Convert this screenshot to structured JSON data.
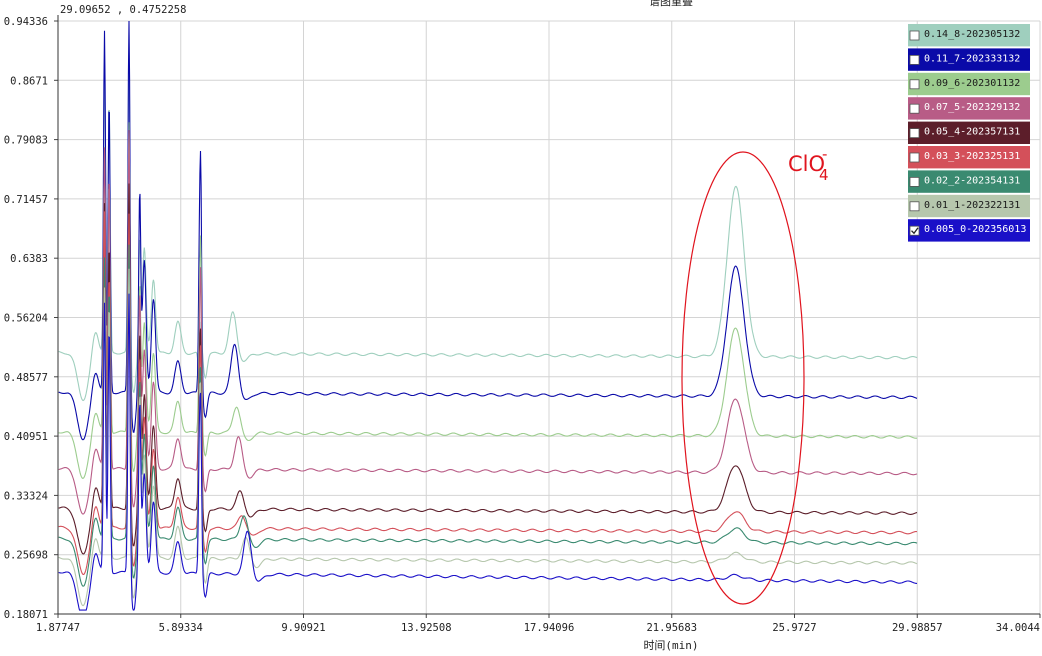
{
  "coord_readout": "29.09652 , 0.4752258",
  "chart_title": "谱图重叠",
  "chart_data": {
    "type": "line",
    "xlabel": "时间(min)",
    "ylabel": "",
    "xlim": [
      1.87747,
      34.0044
    ],
    "ylim": [
      0.18071,
      0.94336
    ],
    "x_ticks": [
      "1.87747",
      "5.89334",
      "9.90921",
      "13.92508",
      "17.94096",
      "21.95683",
      "25.9727",
      "29.98857",
      "34.0044"
    ],
    "y_ticks": [
      "0.94336",
      "0.8671",
      "0.79083",
      "0.71457",
      "0.6383",
      "0.56204",
      "0.48577",
      "0.40951",
      "0.33324",
      "0.25698",
      "0.18071"
    ],
    "grid": true,
    "legend_position": "top-right",
    "annotation": {
      "text": "ClO",
      "sub": "4",
      "sup": "-",
      "peak_x": 24.05
    },
    "series": [
      {
        "name": "0.14_8-202305132",
        "color": "#9fcfbe",
        "baseline": 0.517,
        "peak": 0.735,
        "early_peaks": [
          0.89,
          0.84,
          0.9,
          0.66,
          0.46,
          0.57
        ],
        "peak9": 0.57,
        "checked": false
      },
      {
        "name": "0.11_7-202333132",
        "color": "#0a0aa8",
        "baseline": 0.466,
        "peak": 0.632,
        "early_peaks": [
          0.93,
          0.84,
          0.95,
          0.72,
          0.62,
          0.73
        ],
        "peak9": 0.53,
        "checked": false
      },
      {
        "name": "0.09_6-202301132",
        "color": "#9ccc8e",
        "baseline": 0.415,
        "peak": 0.553,
        "early_peaks": [
          0.78,
          0.74,
          0.82,
          0.6,
          0.52,
          0.64
        ],
        "peak9": 0.45,
        "checked": false
      },
      {
        "name": "0.07_5-202329132",
        "color": "#b85c86",
        "baseline": 0.368,
        "peak": 0.463,
        "early_peaks": [
          0.78,
          0.75,
          0.81,
          0.59,
          0.47,
          0.6
        ],
        "peak9": 0.41,
        "checked": false
      },
      {
        "name": "0.05_4-202357131",
        "color": "#5c1e2a",
        "baseline": 0.317,
        "peak": 0.378,
        "early_peaks": [
          0.71,
          0.66,
          0.74,
          0.54,
          0.46,
          0.5
        ],
        "peak9": 0.34,
        "checked": false
      },
      {
        "name": "0.03_3-202325131",
        "color": "#d4505a",
        "baseline": 0.292,
        "peak": 0.318,
        "early_peaks": [
          0.7,
          0.62,
          0.7,
          0.51,
          0.43,
          0.48
        ],
        "peak9": 0.31,
        "checked": false
      },
      {
        "name": "0.02_2-202354131",
        "color": "#3a8a70",
        "baseline": 0.278,
        "peak": 0.296,
        "early_peaks": [
          0.64,
          0.6,
          0.66,
          0.48,
          0.42,
          0.45
        ],
        "peak9": 0.31,
        "checked": false
      },
      {
        "name": "0.01_1-202322131",
        "color": "#b6c7ad",
        "baseline": 0.253,
        "peak": 0.264,
        "early_peaks": [
          0.6,
          0.58,
          0.63,
          0.46,
          0.4,
          0.43
        ],
        "peak9": 0.28,
        "checked": false
      },
      {
        "name": "0.005_0-202356013",
        "color": "#1a10c8",
        "baseline": 0.235,
        "peak": 0.241,
        "early_peaks": [
          0.58,
          0.55,
          0.6,
          0.45,
          0.38,
          0.42
        ],
        "peak9": 0.29,
        "checked": true
      }
    ]
  }
}
